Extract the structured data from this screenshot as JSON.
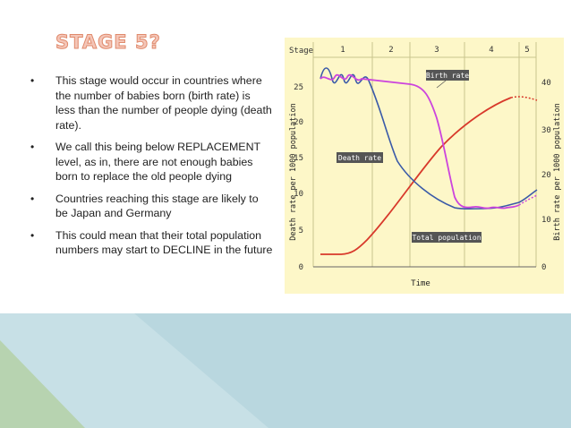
{
  "slide": {
    "title": "STAGE 5?",
    "bullets": [
      "This stage would occur in countries where the number of babies born (birth rate) is less than the number of people dying (death rate).",
      "We call this being below REPLACEMENT level, as in, there are not enough babies born to replace the old people dying",
      "Countries reaching this stage are likely to be Japan and Germany",
      "This could mean that their total population numbers may start to DECLINE in the future"
    ],
    "colors": {
      "title": "#f4c6b8",
      "band_blue": "#b9d7df",
      "band_green": "#b7d3b0"
    }
  },
  "diagram": {
    "stage_label": "Stage",
    "stages": [
      "1",
      "2",
      "3",
      "4",
      "5"
    ],
    "left_ticks": [
      "25",
      "20",
      "15",
      "10",
      "5",
      "0"
    ],
    "right_ticks": [
      "40",
      "30",
      "20",
      "10",
      "0"
    ],
    "left_axis_label": "Death rate per 1000 population",
    "right_axis_label": "Birth rate per 1000 population",
    "x_axis_label": "Time",
    "callouts": {
      "birth": "Birth rate",
      "death": "Death rate",
      "total": "Total population"
    },
    "colors": {
      "birth": "#cc44dd",
      "death": "#3a5aa8",
      "total": "#d8392b",
      "panel": "#fdf7c8"
    }
  }
}
